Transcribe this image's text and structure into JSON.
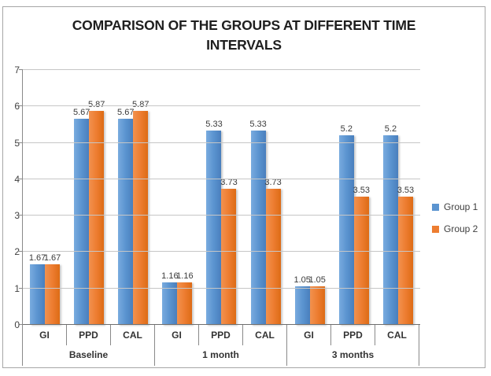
{
  "chart_data": {
    "type": "bar",
    "title": "COMPARISON OF THE GROUPS AT DIFFERENT TIME INTERVALS",
    "xlabel": "",
    "ylabel": "",
    "ylim": [
      0,
      7
    ],
    "y_ticks": [
      0,
      1,
      2,
      3,
      4,
      5,
      6,
      7
    ],
    "grid": "horizontal",
    "legend_position": "right",
    "groups": [
      {
        "label": "Baseline",
        "categories": [
          "GI",
          "PPD",
          "CAL"
        ]
      },
      {
        "label": "1 month",
        "categories": [
          "GI",
          "PPD",
          "CAL"
        ]
      },
      {
        "label": "3 months",
        "categories": [
          "GI",
          "PPD",
          "CAL"
        ]
      }
    ],
    "series": [
      {
        "name": "Group 1",
        "color": "#5b94d0",
        "values": [
          [
            1.67,
            5.67,
            5.67
          ],
          [
            1.16,
            5.33,
            5.33
          ],
          [
            1.05,
            5.2,
            5.2
          ]
        ]
      },
      {
        "name": "Group 2",
        "color": "#ed7d31",
        "values": [
          [
            1.67,
            5.87,
            5.87
          ],
          [
            1.16,
            3.73,
            3.73
          ],
          [
            1.05,
            3.53,
            3.53
          ]
        ]
      }
    ]
  }
}
